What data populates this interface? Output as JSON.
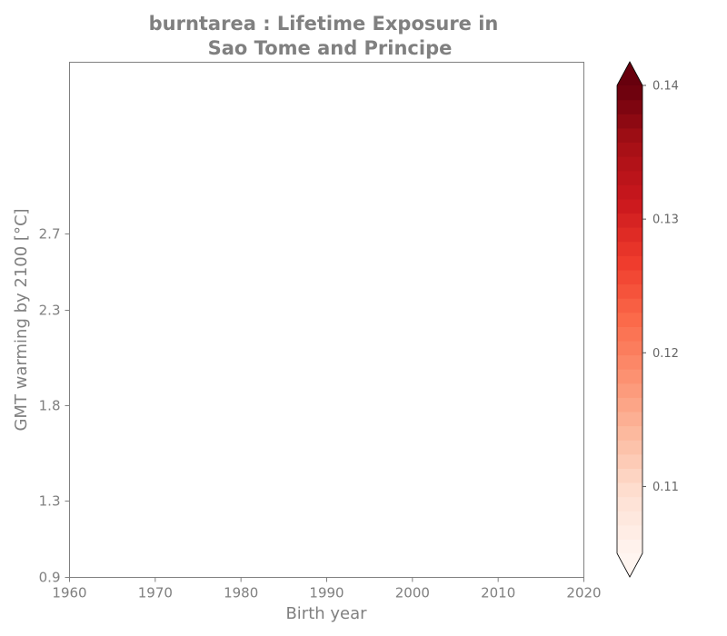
{
  "chart_data": {
    "type": "heatmap",
    "title_lines": [
      "burntarea : Lifetime Exposure in",
      "Sao Tome and Principe"
    ],
    "xlabel": "Birth year",
    "ylabel": "GMT warming by 2100 [°C]",
    "xlim": [
      1960,
      2020
    ],
    "ylim": [
      0.9,
      3.6
    ],
    "x_ticks": [
      1960,
      1970,
      1980,
      1990,
      2000,
      2010,
      2020
    ],
    "y_ticks": [
      0.9,
      1.3,
      1.8,
      2.3,
      2.7
    ],
    "colorbar": {
      "colormap": "Reds",
      "range": [
        0.105,
        0.14
      ],
      "ticks": [
        0.11,
        0.12,
        0.13,
        0.14
      ],
      "levels": 33,
      "extend": "both",
      "color_low": "#fff5f0",
      "color_high": "#67000d"
    },
    "values": []
  }
}
